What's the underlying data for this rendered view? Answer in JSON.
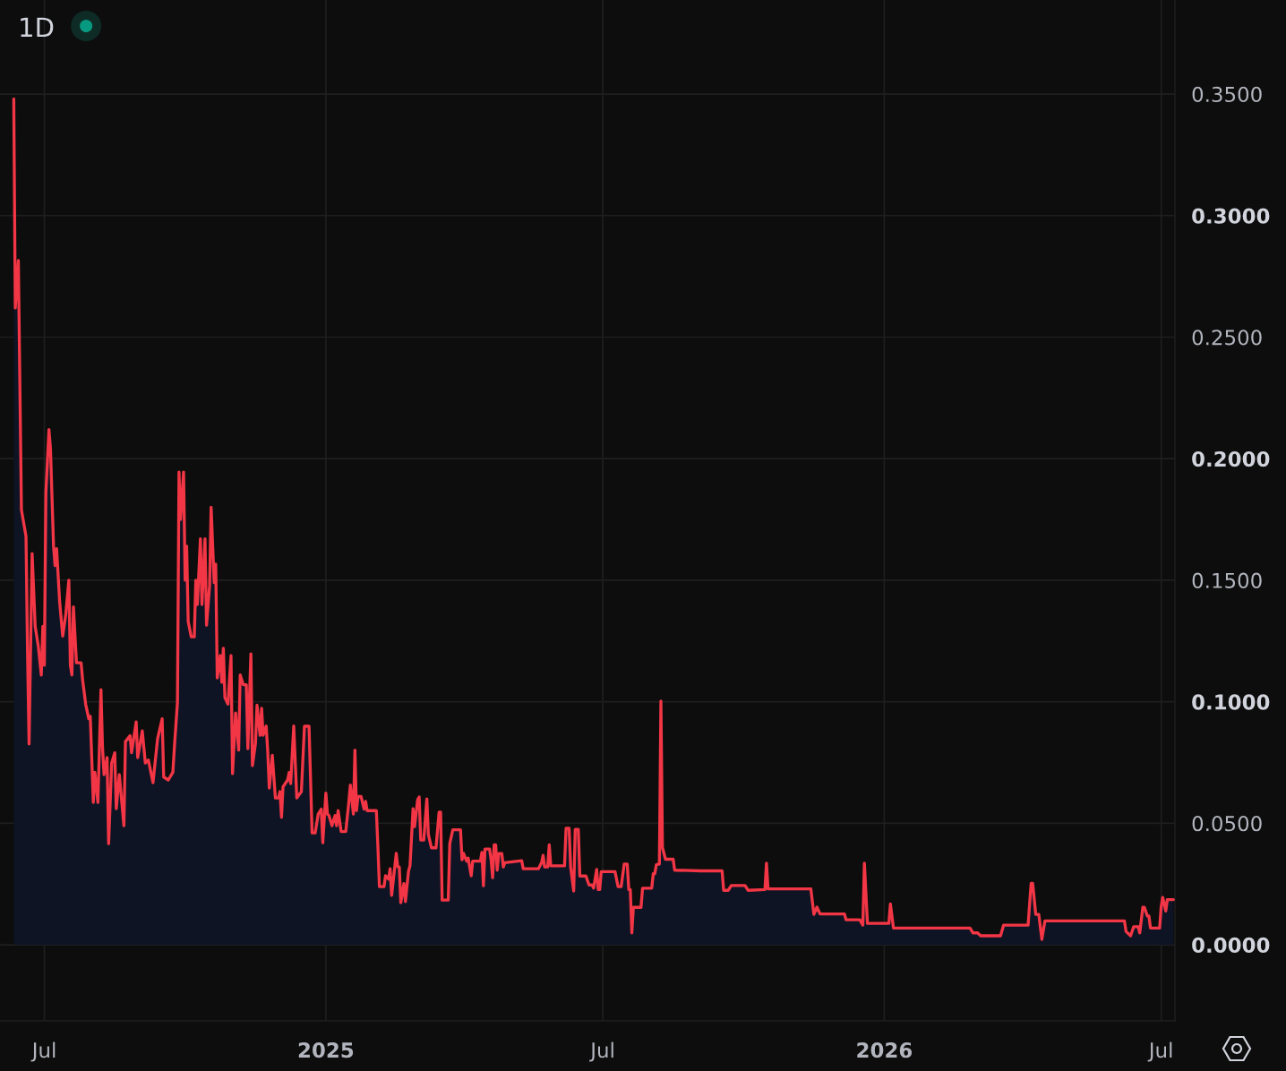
{
  "chart_data": {
    "type": "area",
    "title": "1D",
    "x": [
      "2024-06-11",
      "2024-06-12",
      "2024-06-14",
      "2024-06-16",
      "2024-06-19",
      "2024-06-20",
      "2024-06-21",
      "2024-06-23",
      "2024-06-25",
      "2024-06-27",
      "2024-06-29",
      "2024-06-30",
      "2024-07-01",
      "2024-07-02",
      "2024-07-04",
      "2024-07-05",
      "2024-07-07",
      "2024-07-08",
      "2024-07-09",
      "2024-07-11",
      "2024-07-13",
      "2024-07-15",
      "2024-07-17",
      "2024-07-18",
      "2024-07-19",
      "2024-07-20",
      "2024-07-22",
      "2024-07-25",
      "2024-07-26",
      "2024-07-28",
      "2024-07-30",
      "2024-07-31",
      "2024-08-02",
      "2024-08-03",
      "2024-08-05",
      "2024-08-07",
      "2024-08-08",
      "2024-08-09",
      "2024-08-11",
      "2024-08-12",
      "2024-08-14",
      "2024-08-16",
      "2024-08-17",
      "2024-08-19",
      "2024-08-22",
      "2024-08-23",
      "2024-08-26",
      "2024-08-27",
      "2024-08-30",
      "2024-08-31",
      "2024-09-03",
      "2024-09-05",
      "2024-09-07",
      "2024-09-10",
      "2024-09-13",
      "2024-09-16",
      "2024-09-17",
      "2024-09-20",
      "2024-09-23",
      "2024-09-24",
      "2024-09-26",
      "2024-09-27",
      "2024-09-28",
      "2024-09-30",
      "2024-10-01",
      "2024-10-02",
      "2024-10-03",
      "2024-10-05",
      "2024-10-07",
      "2024-10-08",
      "2024-10-09",
      "2024-10-11",
      "2024-10-12",
      "2024-10-14",
      "2024-10-15",
      "2024-10-17",
      "2024-10-18",
      "2024-10-20",
      "2024-10-21",
      "2024-10-22",
      "2024-10-24",
      "2024-10-25",
      "2024-10-26",
      "2024-10-27",
      "2024-10-29",
      "2024-10-31",
      "2024-11-01",
      "2024-11-03",
      "2024-11-05",
      "2024-11-06",
      "2024-11-08",
      "2024-11-10",
      "2024-11-11",
      "2024-11-13",
      "2024-11-14",
      "2024-11-16",
      "2024-11-17",
      "2024-11-19",
      "2024-11-20",
      "2024-11-21",
      "2024-11-23",
      "2024-11-24",
      "2024-11-25",
      "2024-11-27",
      "2024-11-29",
      "2024-12-01",
      "2024-12-02",
      "2024-12-03",
      "2024-12-04",
      "2024-12-07",
      "2024-12-08",
      "2024-12-09",
      "2024-12-11",
      "2024-12-13",
      "2024-12-16",
      "2024-12-18",
      "2024-12-21",
      "2024-12-23",
      "2024-12-25",
      "2024-12-27",
      "2024-12-29",
      "2024-12-30",
      "2025-01-01",
      "2025-01-02",
      "2025-01-03",
      "2025-01-05",
      "2025-01-07",
      "2025-01-08",
      "2025-01-09",
      "2025-01-11",
      "2025-01-14",
      "2025-01-16",
      "2025-01-17",
      "2025-01-19",
      "2025-01-20",
      "2025-01-21",
      "2025-01-22",
      "2025-01-24",
      "2025-01-26",
      "2025-01-27",
      "2025-01-28",
      "2025-02-03",
      "2025-02-04",
      "2025-02-05",
      "2025-02-08",
      "2025-02-09",
      "2025-02-11",
      "2025-02-12",
      "2025-02-13",
      "2025-02-16",
      "2025-02-17",
      "2025-02-18",
      "2025-02-19",
      "2025-02-21",
      "2025-02-22",
      "2025-02-24",
      "2025-02-25",
      "2025-02-27",
      "2025-02-28",
      "2025-03-02",
      "2025-03-03",
      "2025-03-04",
      "2025-03-06",
      "2025-03-08",
      "2025-03-09",
      "2025-03-11",
      "2025-03-14",
      "2025-03-16",
      "2025-03-17",
      "2025-03-18",
      "2025-03-22",
      "2025-03-23",
      "2025-03-25",
      "2025-03-30",
      "2025-03-31",
      "2025-04-01",
      "2025-04-03",
      "2025-04-04",
      "2025-04-06",
      "2025-04-07",
      "2025-04-12",
      "2025-04-13",
      "2025-04-14",
      "2025-04-15",
      "2025-04-18",
      "2025-04-19",
      "2025-04-20",
      "2025-04-21",
      "2025-04-22",
      "2025-04-23",
      "2025-04-24",
      "2025-04-26",
      "2025-04-27",
      "2025-04-28",
      "2025-05-09",
      "2025-05-10",
      "2025-05-20",
      "2025-05-22",
      "2025-05-23",
      "2025-05-24",
      "2025-05-26",
      "2025-05-27",
      "2025-05-28",
      "2025-06-06",
      "2025-06-07",
      "2025-06-09",
      "2025-06-10",
      "2025-06-12",
      "2025-06-13",
      "2025-06-15",
      "2025-06-16",
      "2025-06-20",
      "2025-06-22",
      "2025-06-24",
      "2025-06-25",
      "2025-06-27",
      "2025-06-28",
      "2025-06-29",
      "2025-06-30",
      "2025-07-09",
      "2025-07-11",
      "2025-07-13",
      "2025-07-15",
      "2025-07-17",
      "2025-07-18",
      "2025-07-19",
      "2025-07-20",
      "2025-07-21",
      "2025-07-26",
      "2025-07-27",
      "2025-08-02",
      "2025-08-03",
      "2025-08-04",
      "2025-08-05",
      "2025-08-07",
      "2025-08-08",
      "2025-08-09",
      "2025-08-11",
      "2025-08-16",
      "2025-08-17",
      "2025-09-03",
      "2025-09-17",
      "2025-09-18",
      "2025-09-21",
      "2025-09-23",
      "2025-10-02",
      "2025-10-04",
      "2025-10-15",
      "2025-10-16",
      "2025-10-17",
      "2025-11-14",
      "2025-11-16",
      "2025-11-18",
      "2025-11-20",
      "2025-12-06",
      "2025-12-07",
      "2025-12-16",
      "2025-12-18",
      "2025-12-19",
      "2025-12-21",
      "2026-01-04",
      "2026-01-05",
      "2026-01-07",
      "2026-02-26",
      "2026-02-28",
      "2026-03-03",
      "2026-03-05",
      "2026-03-18",
      "2026-03-20",
      "2026-04-05",
      "2026-04-07",
      "2026-04-08",
      "2026-04-10",
      "2026-04-12",
      "2026-04-14",
      "2026-04-16",
      "2026-06-07",
      "2026-06-08",
      "2026-06-11",
      "2026-06-13",
      "2026-06-16",
      "2026-06-17",
      "2026-06-19",
      "2026-06-20",
      "2026-06-22",
      "2026-06-23",
      "2026-06-24",
      "2026-06-30",
      "2026-07-01",
      "2026-07-02",
      "2026-07-04",
      "2026-07-05",
      "2026-07-09"
    ],
    "series": [
      {
        "color": "#f23645",
        "values": [
          0.348,
          0.262,
          0.2815,
          0.179,
          0.168,
          0.12,
          0.0826,
          0.161,
          0.131,
          0.123,
          0.111,
          0.131,
          0.115,
          0.186,
          0.212,
          0.204,
          0.164,
          0.156,
          0.163,
          0.141,
          0.127,
          0.136,
          0.15,
          0.115,
          0.111,
          0.139,
          0.116,
          0.116,
          0.109,
          0.099,
          0.093,
          0.094,
          0.0586,
          0.071,
          0.0586,
          0.105,
          0.0814,
          0.07,
          0.077,
          0.0416,
          0.0748,
          0.079,
          0.056,
          0.07,
          0.049,
          0.0836,
          0.086,
          0.079,
          0.0917,
          0.077,
          0.088,
          0.0748,
          0.076,
          0.0667,
          0.0847,
          0.093,
          0.069,
          0.0678,
          0.071,
          0.0814,
          0.0998,
          0.1945,
          0.175,
          0.1945,
          0.15,
          0.164,
          0.133,
          0.1267,
          0.1267,
          0.15,
          0.14,
          0.167,
          0.14,
          0.167,
          0.1315,
          0.1477,
          0.18,
          0.149,
          0.1566,
          0.1098,
          0.119,
          0.108,
          0.122,
          0.1017,
          0.099,
          0.119,
          0.0704,
          0.0954,
          0.0801,
          0.111,
          0.107,
          0.107,
          0.0807,
          0.1197,
          0.0737,
          0.0829,
          0.0986,
          0.0862,
          0.0973,
          0.0862,
          0.09,
          0.0796,
          0.0645,
          0.078,
          0.0604,
          0.0604,
          0.063,
          0.0525,
          0.065,
          0.0678,
          0.0709,
          0.0663,
          0.09,
          0.0604,
          0.063,
          0.0899,
          0.0899,
          0.046,
          0.046,
          0.0538,
          0.0558,
          0.042,
          0.0624,
          0.0538,
          0.0532,
          0.049,
          0.0532,
          0.049,
          0.0552,
          0.0466,
          0.0466,
          0.0586,
          0.0657,
          0.0538,
          0.0801,
          0.0552,
          0.061,
          0.061,
          0.0558,
          0.059,
          0.0552,
          0.0552,
          0.0405,
          0.0239,
          0.0239,
          0.0284,
          0.027,
          0.0313,
          0.0203,
          0.0376,
          0.032,
          0.032,
          0.0173,
          0.0252,
          0.0178,
          0.0302,
          0.0325,
          0.056,
          0.0486,
          0.0597,
          0.0608,
          0.0431,
          0.0431,
          0.06,
          0.0454,
          0.0399,
          0.0399,
          0.0546,
          0.0546,
          0.0184,
          0.0184,
          0.0417,
          0.0473,
          0.0473,
          0.035,
          0.0376,
          0.0344,
          0.0357,
          0.0284,
          0.0344,
          0.0344,
          0.038,
          0.0243,
          0.0394,
          0.0394,
          0.035,
          0.0276,
          0.0411,
          0.0411,
          0.0307,
          0.0375,
          0.0375,
          0.032,
          0.0338,
          0.0346,
          0.0313,
          0.0313,
          0.0338,
          0.0368,
          0.032,
          0.032,
          0.0411,
          0.0325,
          0.0325,
          0.0479,
          0.0479,
          0.032,
          0.0221,
          0.0475,
          0.0475,
          0.0283,
          0.0283,
          0.0246,
          0.0246,
          0.0233,
          0.031,
          0.0227,
          0.0227,
          0.0301,
          0.0301,
          0.0239,
          0.0239,
          0.0332,
          0.0332,
          0.0227,
          0.0227,
          0.0049,
          0.0154,
          0.0154,
          0.0233,
          0.0233,
          0.0292,
          0.0292,
          0.0329,
          0.0332,
          0.1003,
          0.04,
          0.0352,
          0.0352,
          0.0307,
          0.0304,
          0.0304,
          0.0224,
          0.0224,
          0.0244,
          0.0244,
          0.0224,
          0.0227,
          0.0336,
          0.023,
          0.023,
          0.0125,
          0.0155,
          0.0127,
          0.0127,
          0.0103,
          0.0103,
          0.0081,
          0.0336,
          0.0088,
          0.0088,
          0.0168,
          0.0069,
          0.0069,
          0.0049,
          0.0049,
          0.0037,
          0.0037,
          0.0081,
          0.0081,
          0.0253,
          0.0253,
          0.0125,
          0.0125,
          0.0022,
          0.0098,
          0.0098,
          0.0055,
          0.0037,
          0.0074,
          0.0074,
          0.0049,
          0.0154,
          0.0154,
          0.0118,
          0.0118,
          0.0069,
          0.0069,
          0.0157,
          0.0195,
          0.0139,
          0.0186,
          0.0186
        ]
      }
    ],
    "xlim": [
      "2024-06-02",
      "2026-07-10"
    ],
    "xticks": [
      {
        "value": "2024-07-01",
        "label": "Jul"
      },
      {
        "value": "2025-01-01",
        "label": "2025"
      },
      {
        "value": "2025-07-01",
        "label": "Jul"
      },
      {
        "value": "2026-01-01",
        "label": "2026"
      },
      {
        "value": "2026-07-01",
        "label": "Jul"
      }
    ],
    "ylim": [
      -0.0313,
      0.3887
    ],
    "yticks": [
      {
        "value": 0,
        "label": "0.0000"
      },
      {
        "value": 0.05,
        "label": "0.0500"
      },
      {
        "value": 0.1,
        "label": "0.1000"
      },
      {
        "value": 0.15,
        "label": "0.1500"
      },
      {
        "value": 0.2,
        "label": "0.2000"
      },
      {
        "value": 0.25,
        "label": "0.2500"
      },
      {
        "value": 0.3,
        "label": "0.3000"
      },
      {
        "value": 0.35,
        "label": "0.3500"
      }
    ],
    "grid": true
  }
}
